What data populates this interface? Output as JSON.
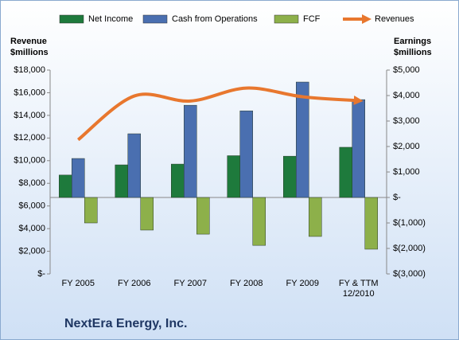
{
  "chart_data": {
    "type": "bar",
    "title": "NextEra Energy, Inc.",
    "y_axis_title": "Revenue $millions",
    "y2_axis_title": "Earnings $millions",
    "categories": [
      "FY 2005",
      "FY 2006",
      "FY 2007",
      "FY 2008",
      "FY 2009",
      "FY & TTM 12/2010"
    ],
    "series": [
      {
        "name": "Net Income",
        "color": "#1e7a3c",
        "axis": "y2",
        "values": [
          880,
          1280,
          1310,
          1640,
          1620,
          1970
        ]
      },
      {
        "name": "Cash from Operations",
        "color": "#4a6fb0",
        "axis": "y2",
        "values": [
          1530,
          2500,
          3620,
          3400,
          4530,
          3840
        ]
      },
      {
        "name": "FCF",
        "color": "#8db04a",
        "axis": "y2",
        "values": [
          -1000,
          -1280,
          -1440,
          -1880,
          -1530,
          -2030
        ]
      },
      {
        "name": "Revenues",
        "type": "line",
        "color": "#e8772e",
        "values": [
          11846,
          15710,
          15263,
          16410,
          15643,
          15300
        ]
      }
    ],
    "ylim": [
      0,
      18000
    ],
    "yticks": [
      {
        "value": 0,
        "label": "$-"
      },
      {
        "value": 2000,
        "label": "$2,000"
      },
      {
        "value": 4000,
        "label": "$4,000"
      },
      {
        "value": 6000,
        "label": "$6,000"
      },
      {
        "value": 8000,
        "label": "$8,000"
      },
      {
        "value": 10000,
        "label": "$10,000"
      },
      {
        "value": 12000,
        "label": "$12,000"
      },
      {
        "value": 14000,
        "label": "$14,000"
      },
      {
        "value": 16000,
        "label": "$16,000"
      },
      {
        "value": 18000,
        "label": "$18,000"
      }
    ],
    "y2lim": [
      -3000,
      5000
    ],
    "y2ticks": [
      {
        "value": -3000,
        "label": "$(3,000)"
      },
      {
        "value": -2000,
        "label": "$(2,000)"
      },
      {
        "value": -1000,
        "label": "$(1,000)"
      },
      {
        "value": 0,
        "label": "$-"
      },
      {
        "value": 1000,
        "label": "$1,000"
      },
      {
        "value": 2000,
        "label": "$2,000"
      },
      {
        "value": 3000,
        "label": "$3,000"
      },
      {
        "value": 4000,
        "label": "$4,000"
      },
      {
        "value": 5000,
        "label": "$5,000"
      }
    ],
    "legend": "top"
  }
}
